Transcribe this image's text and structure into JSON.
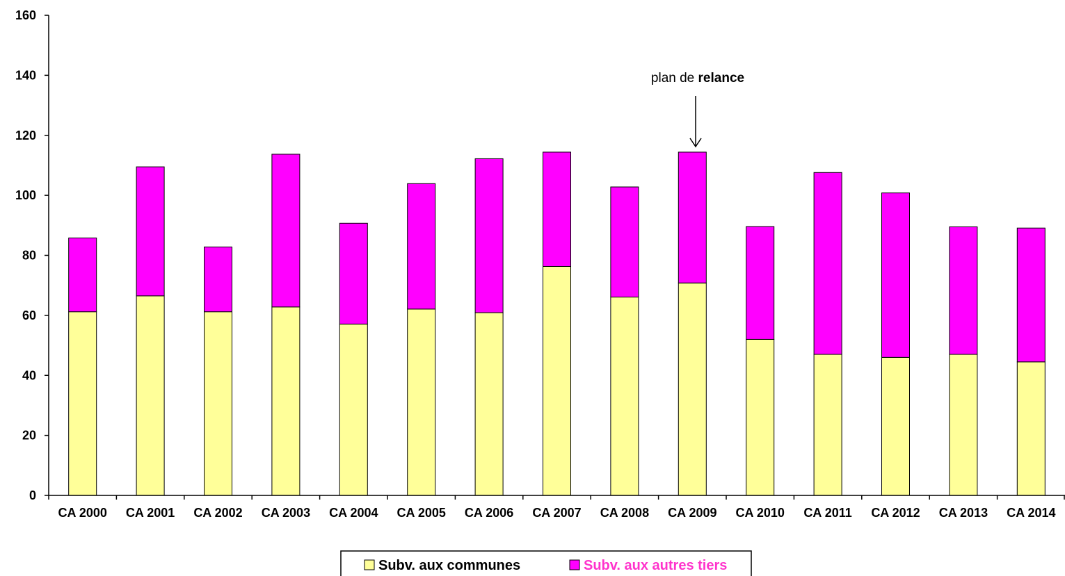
{
  "chart_data": {
    "type": "bar",
    "stacked": true,
    "categories": [
      "CA 2000",
      "CA 2001",
      "CA 2002",
      "CA 2003",
      "CA 2004",
      "CA 2005",
      "CA 2006",
      "CA 2007",
      "CA 2008",
      "CA 2009",
      "CA 2010",
      "CA 2011",
      "CA 2012",
      "CA 2013",
      "CA 2014"
    ],
    "series": [
      {
        "name": "Subv. aux communes",
        "color": "#FFFF99",
        "text_color": "#000000",
        "values": [
          61.2,
          66.5,
          61.2,
          62.8,
          57.1,
          62.1,
          60.9,
          76.3,
          66.1,
          70.8,
          52.0,
          47.0,
          46.0,
          47.0,
          44.5
        ]
      },
      {
        "name": "Subv. aux autres tiers",
        "color": "#FF00FF",
        "text_color": "#FF33CC",
        "values": [
          24.6,
          43.0,
          21.6,
          50.9,
          33.6,
          41.8,
          51.3,
          38.1,
          36.7,
          43.6,
          37.6,
          60.6,
          54.8,
          42.5,
          44.6
        ]
      }
    ],
    "ylim": [
      0,
      160
    ],
    "yticks": [
      0,
      20,
      40,
      60,
      80,
      100,
      120,
      140,
      160
    ],
    "title": "",
    "xlabel": "",
    "ylabel": "",
    "grid": false,
    "legend_position": "bottom-center",
    "annotation": {
      "prefix": "plan de ",
      "bold": "relance",
      "category": "CA 2009"
    }
  }
}
